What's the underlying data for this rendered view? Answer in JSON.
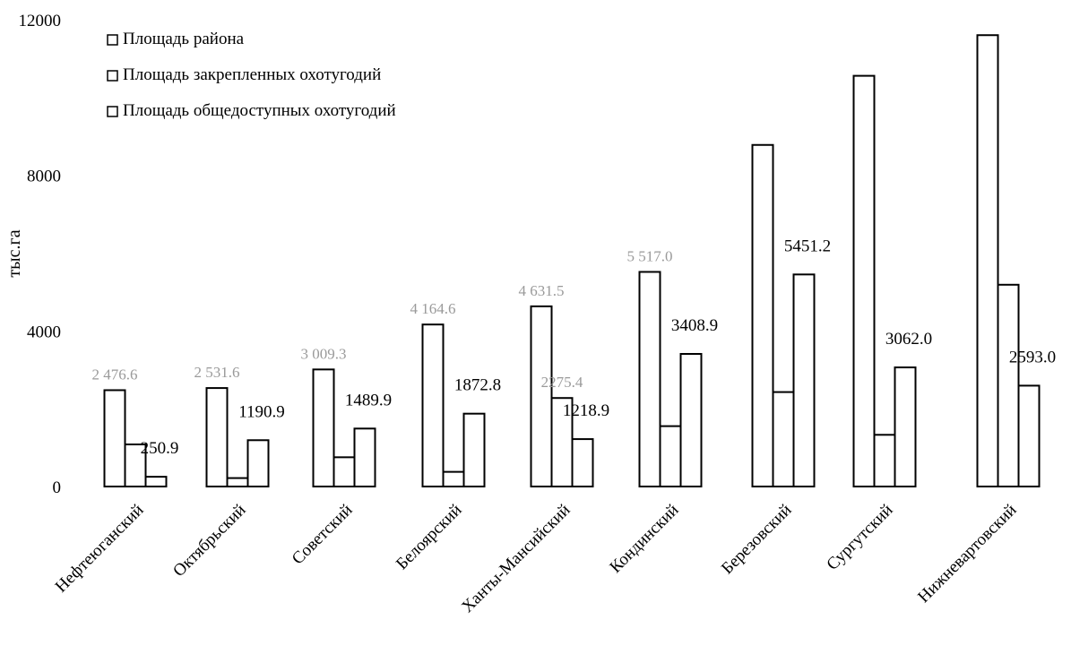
{
  "chart_data": {
    "type": "bar",
    "ylabel": "тыс.га",
    "ylim": [
      0,
      12000
    ],
    "yticks": [
      0,
      4000,
      8000,
      12000
    ],
    "grid": false,
    "legend_position": "top-left",
    "categories": [
      "Нефтеюганский",
      "Октябрьский",
      "Советский",
      "Белоярский",
      "Ханты-Мансийский",
      "Кондинский",
      "Березовский",
      "Сургутский",
      "Нижневартовский"
    ],
    "series": [
      {
        "name": "Площадь района",
        "values": [
          2476.6,
          2531.6,
          3009.3,
          4164.6,
          4631.5,
          5517.0,
          8781.0,
          10558.0,
          11603.0
        ],
        "labels": [
          "2 476.6",
          "2 531.6",
          "3 009.3",
          "4 164.6",
          "4 631.5",
          "5 517.0",
          "",
          "",
          ""
        ]
      },
      {
        "name": "Площадь закрепленных охотугодий",
        "values": [
          1082.0,
          217.0,
          752.0,
          377.0,
          2275.4,
          1552.0,
          2428.0,
          1329.0,
          5187.0
        ],
        "labels": [
          "",
          "",
          "",
          "",
          "2275.4",
          "",
          "",
          "",
          ""
        ]
      },
      {
        "name": "Площадь общедоступных охотугодий",
        "values": [
          250.9,
          1190.9,
          1489.9,
          1872.8,
          1218.9,
          3408.9,
          5451.2,
          3062.0,
          2593.0
        ],
        "labels": [
          "250.9",
          "1190.9",
          "1489.9",
          "1872.8",
          "1218.9",
          "3408.9",
          "5451.2",
          "3062.0",
          "2593.0"
        ]
      }
    ]
  }
}
